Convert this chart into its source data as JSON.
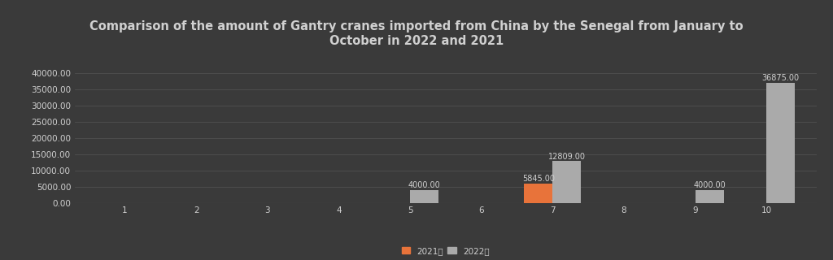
{
  "title": "Comparison of the amount of Gantry cranes imported from China by the Senegal from January to\nOctober in 2022 and 2021",
  "months": [
    1,
    2,
    3,
    4,
    5,
    6,
    7,
    8,
    9,
    10
  ],
  "data_2021": [
    0,
    0,
    0,
    0,
    0,
    0,
    5845,
    0,
    0,
    0
  ],
  "data_2022": [
    0,
    0,
    0,
    0,
    4000,
    0,
    12809,
    0,
    4000,
    36875
  ],
  "bar_color_2021": "#E8733A",
  "bar_color_2022": "#AAAAAA",
  "background_color": "#3a3a3a",
  "text_color": "#d0d0d0",
  "grid_color": "#555555",
  "ylim": [
    0,
    40000
  ],
  "yticks": [
    0,
    5000,
    10000,
    15000,
    20000,
    25000,
    30000,
    35000,
    40000
  ],
  "legend_2021": "2021年",
  "legend_2022": "2022年",
  "bar_width": 0.4,
  "title_fontsize": 10.5,
  "tick_fontsize": 7.5,
  "label_fontsize": 7
}
